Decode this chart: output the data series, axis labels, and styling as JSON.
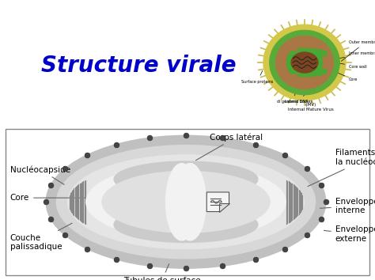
{
  "title": "Structure virale",
  "title_color": "#0000CC",
  "title_fontsize": 20,
  "bg_color": "#FFFFFF",
  "labels": {
    "corps_lateral": "Corps latéral",
    "nucleocapside": "Nucléocapside",
    "core": "Core",
    "couche_palissadique": "Couche\npalissadique",
    "tubules": "Tubules de surface",
    "filaments": "Filaments de\nla nucléocapside",
    "enveloppe_interne": "Enveloppe\ninterne",
    "enveloppe_externe": "Enveloppe\nexterne"
  },
  "dot_color": "#444444",
  "dot_size": 5,
  "line_color": "#666666",
  "annotation_fontsize": 7.5
}
